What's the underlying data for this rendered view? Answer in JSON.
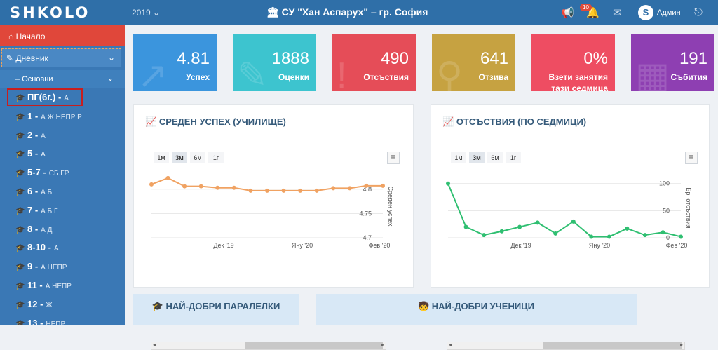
{
  "topbar": {
    "logo": "SHKOLO",
    "year": "2019 ⌄",
    "school": "СУ \"Хан Аспарух\" – гр. София",
    "notif_count": "10",
    "user": "Админ",
    "avatar": "S"
  },
  "sidebar": {
    "home": "Начало",
    "diary": "Дневник",
    "osnovni": "Основни",
    "classes": [
      {
        "name": "ПГ(6г.) -",
        "sections": "А"
      },
      {
        "name": "1 -",
        "sections": "А Ж НЕПР Р"
      },
      {
        "name": "2 -",
        "sections": "А"
      },
      {
        "name": "5 -",
        "sections": "А"
      },
      {
        "name": "5-7 -",
        "sections": "СБ.ГР."
      },
      {
        "name": "6 -",
        "sections": "А Б"
      },
      {
        "name": "7 -",
        "sections": "А Б Г"
      },
      {
        "name": "8 -",
        "sections": "А Д"
      },
      {
        "name": "8-10 -",
        "sections": "А"
      },
      {
        "name": "9 -",
        "sections": "А НЕПР"
      },
      {
        "name": "11 -",
        "sections": "А НЕПР"
      },
      {
        "name": "12 -",
        "sections": "Ж"
      },
      {
        "name": "13 -",
        "sections": "НЕПР"
      }
    ]
  },
  "stats": [
    {
      "value": "4.81",
      "label": "Успех",
      "color": "#3b95dd"
    },
    {
      "value": "1888",
      "label": "Оценки",
      "color": "#3dc4cf"
    },
    {
      "value": "490",
      "label": "Отсъствия",
      "color": "#e54d58"
    },
    {
      "value": "641",
      "label": "Отзива",
      "color": "#c6a241"
    },
    {
      "value": "0%",
      "label": "Взети занятия тази седмица",
      "color": "#ee4d62"
    },
    {
      "value": "191",
      "label": "Събития",
      "color": "#8e3fb2"
    }
  ],
  "range_buttons": [
    "1м",
    "3м",
    "6м",
    "1г"
  ],
  "panels": {
    "success_title": "СРЕДЕН УСПЕХ (УЧИЛИЩЕ)",
    "absence_title": "ОТСЪСТВИЯ (ПО СЕДМИЦИ)",
    "best_classes": "НАЙ-ДОБРИ ПАРАЛЕЛКИ",
    "best_students": "НАЙ-ДОБРИ УЧЕНИЦИ"
  },
  "chart_data": [
    {
      "type": "line",
      "title": "СРЕДЕН УСПЕХ (УЧИЛИЩЕ)",
      "ylabel": "Среден успех",
      "x_ticks": [
        "Дек '19",
        "Яну '20",
        "Фев '20"
      ],
      "y_ticks": [
        "4.8",
        "4.75",
        "4.7"
      ],
      "ylim": [
        4.7,
        4.83
      ],
      "color": "#f0a262",
      "values": [
        4.81,
        4.823,
        4.806,
        4.806,
        4.803,
        4.803,
        4.797,
        4.797,
        4.797,
        4.797,
        4.797,
        4.802,
        4.802,
        4.807,
        4.807
      ]
    },
    {
      "type": "line",
      "title": "ОТСЪСТВИЯ (ПО СЕДМИЦИ)",
      "ylabel": "Бр. отсъствия",
      "x_ticks": [
        "Дек '19",
        "Яну '20",
        "Фев '20"
      ],
      "y_ticks": [
        "100",
        "50",
        "0"
      ],
      "ylim": [
        0,
        110
      ],
      "color": "#2fbf71",
      "values": [
        100,
        20,
        5,
        12,
        20,
        28,
        8,
        30,
        2,
        2,
        17,
        5,
        10,
        2
      ]
    }
  ]
}
